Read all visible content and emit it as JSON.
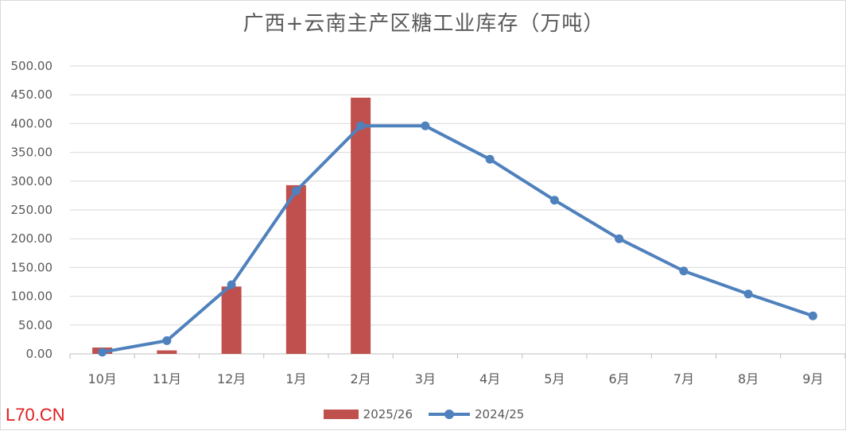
{
  "chart_data": {
    "type": "bar",
    "title": "广西+云南主产区糖工业库存（万吨）",
    "categories": [
      "10月",
      "11月",
      "12月",
      "1月",
      "2月",
      "3月",
      "4月",
      "5月",
      "6月",
      "7月",
      "8月",
      "9月"
    ],
    "series": [
      {
        "name": "2025/26",
        "type": "bar",
        "color": "#c0504d",
        "values": [
          11,
          6,
          117,
          293,
          445,
          null,
          null,
          null,
          null,
          null,
          null,
          null
        ]
      },
      {
        "name": "2024/25",
        "type": "line",
        "color": "#4f81bd",
        "values": [
          3,
          23,
          120,
          283,
          396,
          396,
          338,
          267,
          200,
          144,
          104,
          66
        ]
      }
    ],
    "y_ticks": [
      "0.00",
      "50.00",
      "100.00",
      "150.00",
      "200.00",
      "250.00",
      "300.00",
      "350.00",
      "400.00",
      "450.00",
      "500.00"
    ],
    "ylim": [
      0,
      500
    ],
    "grid": true,
    "legend_position": "bottom"
  },
  "watermark": "L70.CN"
}
